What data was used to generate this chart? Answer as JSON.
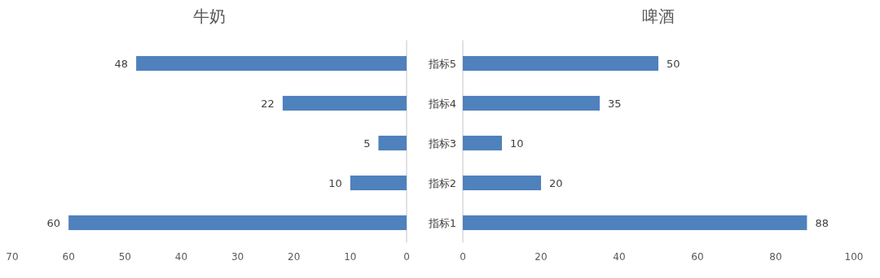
{
  "chart_data": [
    {
      "type": "bar",
      "title": "牛奶",
      "orientation": "horizontal",
      "categories": [
        null,
        null,
        null,
        null,
        null
      ],
      "values": [
        48,
        22,
        5,
        10,
        60
      ],
      "color": "#4f81bd",
      "xlim": [
        70,
        0
      ],
      "xticks": [
        70,
        60,
        50,
        40,
        30,
        20,
        10,
        0
      ],
      "data_labels": true,
      "tick_labels": "x"
    },
    {
      "type": "bar",
      "title": "啤酒",
      "orientation": "horizontal",
      "categories": [
        "指标5",
        "指标4",
        "指标3",
        "指标2",
        "指标1"
      ],
      "values": [
        50,
        35,
        10,
        20,
        88
      ],
      "color": "#4f81bd",
      "xlim": [
        0,
        100
      ],
      "xticks": [
        0,
        20,
        40,
        60,
        80,
        100
      ],
      "data_labels": true
    }
  ]
}
